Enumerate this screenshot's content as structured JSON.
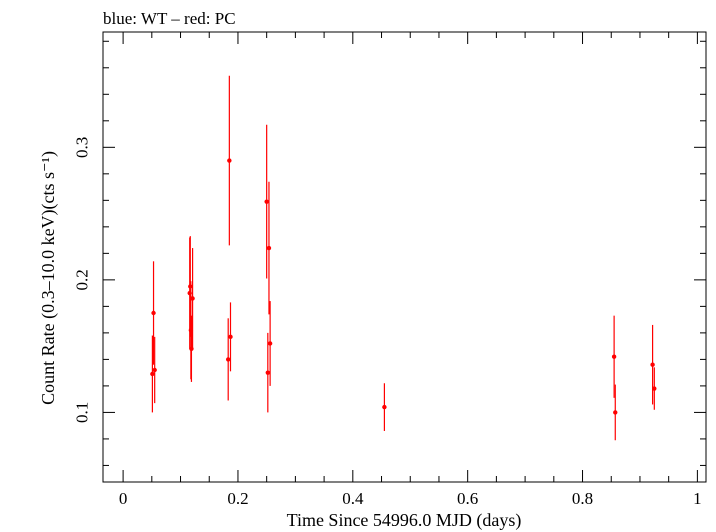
{
  "chart_data": {
    "type": "scatter",
    "title": "blue: WT – red: PC",
    "xlabel": "Time Since 54996.0 MJD (days)",
    "ylabel": "Count Rate (0.3–10.0 keV)(cts s⁻¹)",
    "xlim": [
      -0.035,
      1.015
    ],
    "ylim": [
      0.0475,
      0.387
    ],
    "x_ticks": [
      0,
      0.2,
      0.4,
      0.6,
      0.8,
      1
    ],
    "x_tick_labels": [
      "0",
      "0.2",
      "0.4",
      "0.6",
      "0.8",
      "1"
    ],
    "y_ticks": [
      0.1,
      0.2,
      0.3
    ],
    "y_tick_labels": [
      "0.1",
      "0.2",
      "0.3"
    ],
    "grid": false,
    "series": [
      {
        "color": "#ff0000",
        "points": [
          {
            "x": 0.051,
            "y": 0.129,
            "err": 0.029
          },
          {
            "x": 0.053,
            "y": 0.175,
            "err": 0.039
          },
          {
            "x": 0.055,
            "y": 0.132,
            "err": 0.025
          },
          {
            "x": 0.116,
            "y": 0.19,
            "err": 0.042
          },
          {
            "x": 0.117,
            "y": 0.195,
            "err": 0.038
          },
          {
            "x": 0.118,
            "y": 0.162,
            "err": 0.037
          },
          {
            "x": 0.119,
            "y": 0.148,
            "err": 0.025
          },
          {
            "x": 0.121,
            "y": 0.186,
            "err": 0.038
          },
          {
            "x": 0.183,
            "y": 0.14,
            "err": 0.031
          },
          {
            "x": 0.185,
            "y": 0.29,
            "err": 0.064
          },
          {
            "x": 0.187,
            "y": 0.157,
            "err": 0.026
          },
          {
            "x": 0.25,
            "y": 0.259,
            "err": 0.058
          },
          {
            "x": 0.252,
            "y": 0.13,
            "err": 0.03
          },
          {
            "x": 0.254,
            "y": 0.224,
            "err": 0.05
          },
          {
            "x": 0.256,
            "y": 0.152,
            "err": 0.032
          },
          {
            "x": 0.455,
            "y": 0.104,
            "err": 0.018
          },
          {
            "x": 0.855,
            "y": 0.142,
            "err": 0.031
          },
          {
            "x": 0.857,
            "y": 0.1,
            "err": 0.021
          },
          {
            "x": 0.922,
            "y": 0.136,
            "err": 0.03
          },
          {
            "x": 0.925,
            "y": 0.118,
            "err": 0.016
          }
        ]
      }
    ]
  }
}
